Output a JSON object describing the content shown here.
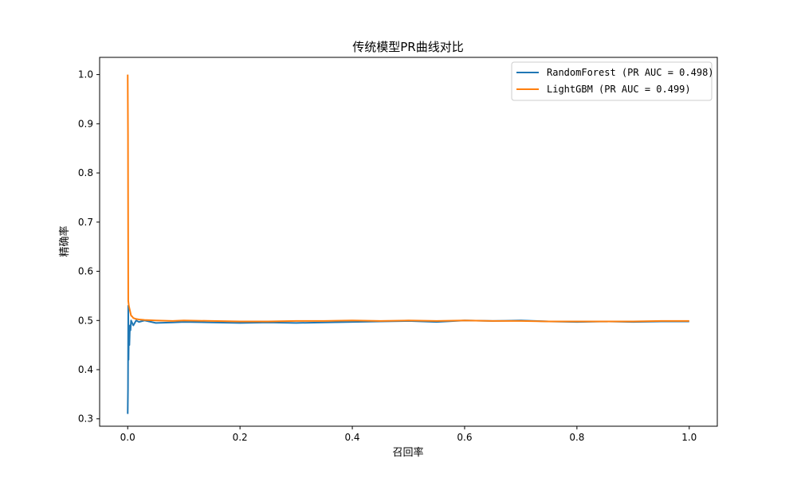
{
  "chart_data": {
    "type": "line",
    "title": "传统模型PR曲线对比",
    "xlabel": "召回率",
    "ylabel": "精确率",
    "xlim": [
      -0.05,
      1.05
    ],
    "ylim": [
      0.285,
      1.035
    ],
    "xticks": [
      "0.0",
      "0.2",
      "0.4",
      "0.6",
      "0.8",
      "1.0"
    ],
    "yticks": [
      "0.3",
      "0.4",
      "0.5",
      "0.6",
      "0.7",
      "0.8",
      "0.9",
      "1.0"
    ],
    "grid": false,
    "legend_position": "top-right",
    "series": [
      {
        "name": "RandomForest (PR AUC = 0.498)",
        "color": "#1f77b4",
        "x": [
          0.0,
          0.0005,
          0.001,
          0.0015,
          0.002,
          0.003,
          0.004,
          0.005,
          0.006,
          0.008,
          0.01,
          0.015,
          0.02,
          0.03,
          0.05,
          0.08,
          0.1,
          0.15,
          0.2,
          0.25,
          0.3,
          0.35,
          0.4,
          0.45,
          0.5,
          0.55,
          0.6,
          0.65,
          0.7,
          0.75,
          0.8,
          0.85,
          0.9,
          0.95,
          1.0
        ],
        "y": [
          0.31,
          0.36,
          0.53,
          0.42,
          0.47,
          0.45,
          0.49,
          0.48,
          0.5,
          0.495,
          0.49,
          0.5,
          0.497,
          0.5,
          0.495,
          0.496,
          0.497,
          0.496,
          0.495,
          0.496,
          0.495,
          0.496,
          0.497,
          0.498,
          0.499,
          0.497,
          0.5,
          0.499,
          0.5,
          0.498,
          0.497,
          0.498,
          0.497,
          0.498,
          0.498
        ]
      },
      {
        "name": "LightGBM (PR AUC = 0.499)",
        "color": "#ff7f0e",
        "x": [
          0.0,
          0.0005,
          0.001,
          0.002,
          0.004,
          0.006,
          0.008,
          0.01,
          0.015,
          0.02,
          0.03,
          0.05,
          0.08,
          0.1,
          0.15,
          0.2,
          0.25,
          0.3,
          0.35,
          0.4,
          0.45,
          0.5,
          0.55,
          0.6,
          0.65,
          0.7,
          0.75,
          0.8,
          0.85,
          0.9,
          0.95,
          1.0
        ],
        "y": [
          1.0,
          0.88,
          0.54,
          0.53,
          0.52,
          0.51,
          0.508,
          0.505,
          0.503,
          0.502,
          0.501,
          0.5,
          0.499,
          0.5,
          0.499,
          0.498,
          0.498,
          0.499,
          0.499,
          0.5,
          0.499,
          0.5,
          0.499,
          0.5,
          0.499,
          0.499,
          0.498,
          0.498,
          0.498,
          0.498,
          0.499,
          0.499
        ]
      }
    ]
  }
}
